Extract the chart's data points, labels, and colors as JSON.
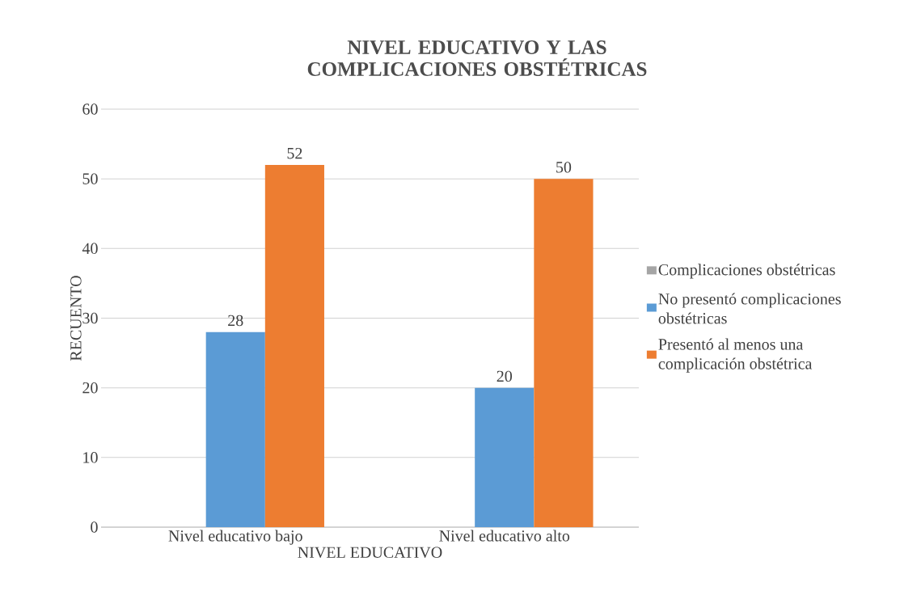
{
  "chart_data": {
    "type": "bar",
    "title": "NIVEL EDUCATIVO Y LAS COMPLICACIONES OBSTÉTRICAS",
    "xlabel": "NIVEL EDUCATIVO",
    "ylabel": "RECUENTO",
    "categories": [
      "Nivel educativo bajo",
      "Nivel educativo alto"
    ],
    "series": [
      {
        "name": "Complicaciones obstétricas",
        "color": "#a5a5a5",
        "values": [
          null,
          null
        ]
      },
      {
        "name": "No presentó complicaciones obstétricas",
        "color": "#5b9bd5",
        "values": [
          28,
          20
        ]
      },
      {
        "name": "Presentó al menos una complicación obstétrica",
        "color": "#ed7d31",
        "values": [
          52,
          50
        ]
      }
    ],
    "ylim": [
      0,
      60
    ],
    "yticks": [
      0,
      10,
      20,
      30,
      40,
      50,
      60
    ],
    "grid": "y",
    "legend": "right",
    "data_labels": true
  }
}
